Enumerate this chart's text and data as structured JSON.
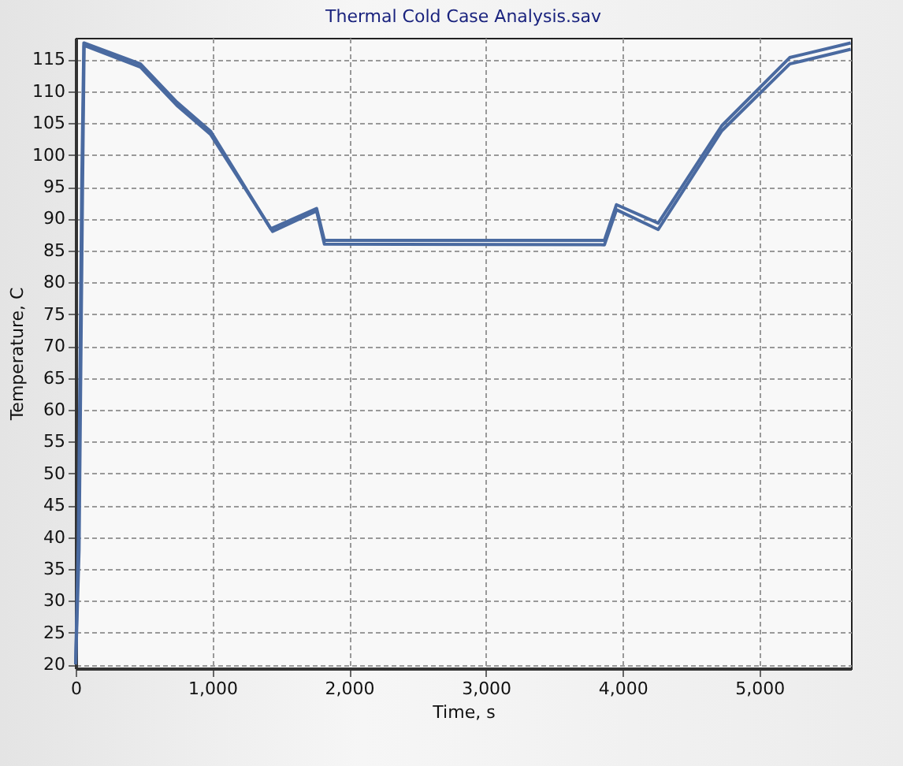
{
  "chart_data": {
    "type": "line",
    "title": "Thermal Cold Case Analysis.sav",
    "xlabel": "Time, s",
    "ylabel": "Temperature, C",
    "xlim": [
      0,
      5670
    ],
    "ylim": [
      19.4,
      118.4
    ],
    "xticks": [
      {
        "value": 0,
        "label": "0"
      },
      {
        "value": 1000,
        "label": "1,000"
      },
      {
        "value": 2000,
        "label": "2,000"
      },
      {
        "value": 3000,
        "label": "3,000"
      },
      {
        "value": 4000,
        "label": "4,000"
      },
      {
        "value": 5000,
        "label": "5,000"
      }
    ],
    "yticks": [
      20,
      25,
      30,
      35,
      40,
      45,
      50,
      55,
      60,
      65,
      70,
      75,
      80,
      85,
      90,
      95,
      100,
      105,
      110,
      115
    ],
    "grid": true,
    "legend": false,
    "marker": "none",
    "line_style": "solid",
    "series": [
      {
        "color": "#4a6aa0",
        "x": [
          0,
          20,
          45,
          60,
          474,
          740,
          988,
          1427,
          1762,
          1819,
          3867,
          3955,
          4260,
          4725,
          5222,
          5668
        ],
        "values": [
          20,
          40,
          96,
          117.6,
          114.3,
          108.3,
          103.7,
          88.4,
          91.6,
          86.6,
          86.6,
          92.2,
          89.3,
          104.6,
          115.3,
          117.6
        ]
      },
      {
        "color": "#4a6aa0",
        "x": [
          0,
          25,
          50,
          62,
          474,
          740,
          988,
          1440,
          1762,
          1819,
          3867,
          3955,
          4260,
          4725,
          5222,
          5668
        ],
        "values": [
          20,
          38,
          94,
          117.2,
          113.8,
          107.8,
          103.2,
          88.0,
          91.2,
          86.0,
          85.9,
          91.4,
          88.3,
          103.8,
          114.3,
          116.6
        ]
      }
    ]
  }
}
